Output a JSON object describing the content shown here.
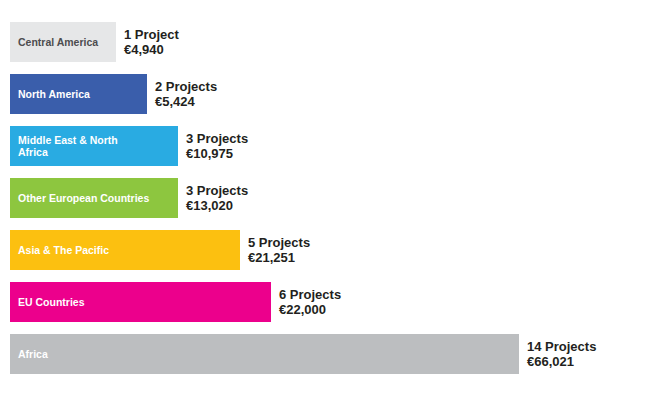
{
  "chart_data": {
    "type": "bar",
    "orientation": "horizontal",
    "categories": [
      "Central America",
      "North America",
      "Middle East & North Africa",
      "Other European Countries",
      "Asia & The Pacific",
      "EU Countries",
      "Africa"
    ],
    "values": [
      1,
      2,
      3,
      3,
      5,
      6,
      14
    ],
    "value_labels": [
      "1 Project",
      "2 Projects",
      "3 Projects",
      "3 Projects",
      "5 Projects",
      "6 Projects",
      "14 Projects"
    ],
    "amounts": [
      4940,
      5424,
      10975,
      13020,
      21251,
      22000,
      66021
    ],
    "amount_labels": [
      "€4,940",
      "€5,424",
      "€10,975",
      "€13,020",
      "€21,251",
      "€22,000",
      "€66,021"
    ],
    "colors": [
      "#e6e7e8",
      "#3a5eab",
      "#29abe2",
      "#8dc63f",
      "#fcc010",
      "#ec008c",
      "#bcbec0"
    ],
    "xlim": [
      0,
      14
    ],
    "data_labels": true,
    "tick_labels": "y",
    "grid": false
  }
}
